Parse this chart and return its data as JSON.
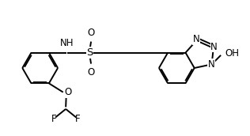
{
  "background_color": "#ffffff",
  "line_color": "#000000",
  "line_width": 1.4,
  "font_size": 8.5,
  "figsize": [
    3.16,
    1.72
  ],
  "dpi": 100,
  "xlim": [
    0,
    10
  ],
  "ylim": [
    0,
    5.44
  ]
}
